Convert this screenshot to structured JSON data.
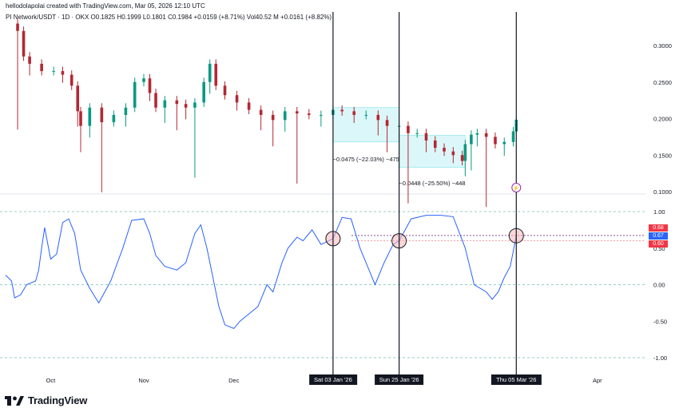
{
  "header": {
    "publisher": "hellodolapolai created with TradingView.com, Mar 05, 2026 12:10 UTC",
    "symbol_line": "PI Network/USDT · 1D · OKX  O0.1825  H0.1999  L0.1801  C0.1984  +0.0159 (+8.71%)  Vol40.52 M  +0.0161 (+8.82%)"
  },
  "brand": {
    "name": "TradingView"
  },
  "colors": {
    "up": "#089981",
    "down": "#b22833",
    "osc": "#2962ff",
    "measure": "#7ee3e8"
  },
  "chart_data": [
    {
      "type": "candlestick",
      "title": "PI Network/USDT · 1D · OKX",
      "y_ticks": [
        "0.1000",
        "0.1500",
        "0.2000",
        "0.2500",
        "0.3000"
      ],
      "ylim": [
        0.1,
        0.35
      ],
      "x_ticks": [
        "Oct",
        "Nov",
        "Dec",
        "Apr"
      ],
      "x_range": [
        "2025-09-16",
        "2026-04-17"
      ],
      "close_series": [
        {
          "date": "2025-09-20",
          "close": 0.32
        },
        {
          "date": "2025-09-22",
          "close": 0.285
        },
        {
          "date": "2025-09-24",
          "close": 0.275
        },
        {
          "date": "2025-09-28",
          "close": 0.265
        },
        {
          "date": "2025-10-02",
          "close": 0.265
        },
        {
          "date": "2025-10-05",
          "close": 0.26
        },
        {
          "date": "2025-10-08",
          "close": 0.245
        },
        {
          "date": "2025-10-10",
          "close": 0.21
        },
        {
          "date": "2025-10-11",
          "close": 0.19
        },
        {
          "date": "2025-10-14",
          "close": 0.215
        },
        {
          "date": "2025-10-18",
          "close": 0.195
        },
        {
          "date": "2025-10-22",
          "close": 0.205
        },
        {
          "date": "2025-10-26",
          "close": 0.215
        },
        {
          "date": "2025-10-29",
          "close": 0.25
        },
        {
          "date": "2025-11-01",
          "close": 0.255
        },
        {
          "date": "2025-11-03",
          "close": 0.235
        },
        {
          "date": "2025-11-05",
          "close": 0.215
        },
        {
          "date": "2025-11-08",
          "close": 0.225
        },
        {
          "date": "2025-11-12",
          "close": 0.22
        },
        {
          "date": "2025-11-15",
          "close": 0.215
        },
        {
          "date": "2025-11-18",
          "close": 0.222
        },
        {
          "date": "2025-11-21",
          "close": 0.25
        },
        {
          "date": "2025-11-23",
          "close": 0.275
        },
        {
          "date": "2025-11-25",
          "close": 0.245
        },
        {
          "date": "2025-11-28",
          "close": 0.232
        },
        {
          "date": "2025-12-02",
          "close": 0.222
        },
        {
          "date": "2025-12-06",
          "close": 0.212
        },
        {
          "date": "2025-12-10",
          "close": 0.205
        },
        {
          "date": "2025-12-14",
          "close": 0.198
        },
        {
          "date": "2025-12-18",
          "close": 0.21
        },
        {
          "date": "2025-12-22",
          "close": 0.207
        },
        {
          "date": "2025-12-26",
          "close": 0.205
        },
        {
          "date": "2025-12-30",
          "close": 0.205
        },
        {
          "date": "2026-01-03",
          "close": 0.212
        },
        {
          "date": "2026-01-06",
          "close": 0.21
        },
        {
          "date": "2026-01-10",
          "close": 0.205
        },
        {
          "date": "2026-01-14",
          "close": 0.205
        },
        {
          "date": "2026-01-18",
          "close": 0.198
        },
        {
          "date": "2026-01-21",
          "close": 0.19
        },
        {
          "date": "2026-01-25",
          "close": 0.19
        },
        {
          "date": "2026-01-28",
          "close": 0.18
        },
        {
          "date": "2026-01-31",
          "close": 0.18
        },
        {
          "date": "2026-02-03",
          "close": 0.17
        },
        {
          "date": "2026-02-06",
          "close": 0.16
        },
        {
          "date": "2026-02-09",
          "close": 0.155
        },
        {
          "date": "2026-02-12",
          "close": 0.15
        },
        {
          "date": "2026-02-15",
          "close": 0.142
        },
        {
          "date": "2026-02-16",
          "close": 0.165
        },
        {
          "date": "2026-02-18",
          "close": 0.178
        },
        {
          "date": "2026-02-20",
          "close": 0.18
        },
        {
          "date": "2026-02-23",
          "close": 0.175
        },
        {
          "date": "2026-02-26",
          "close": 0.165
        },
        {
          "date": "2026-03-01",
          "close": 0.168
        },
        {
          "date": "2026-03-04",
          "close": 0.1825
        },
        {
          "date": "2026-03-05",
          "close": 0.1984
        }
      ],
      "last_candle": {
        "date": "2026-03-05",
        "open": 0.1825,
        "high": 0.1999,
        "low": 0.1801,
        "close": 0.1984
      },
      "measurements": [
        {
          "start": "2026-01-03",
          "end": "2026-01-25",
          "top": 0.215,
          "bottom": 0.168,
          "label": "−0.0475 (−22.03%) −475"
        },
        {
          "start": "2026-01-25",
          "end": "2026-02-16",
          "top": 0.177,
          "bottom": 0.133,
          "label": "−0.0448 (−25.50%) −448"
        }
      ],
      "marker": {
        "date": "2026-03-05",
        "glyph": "⚡"
      }
    },
    {
      "type": "line",
      "y_ticks": [
        "-1.00",
        "-0.50",
        "0.00",
        "0.50",
        "1.00"
      ],
      "ylim": [
        -1.2,
        1.2
      ],
      "reference_lines": [
        1.0,
        0.0,
        -1.0
      ],
      "current_values": [
        {
          "label": "0.68",
          "value": 0.68,
          "color": "#f23645"
        },
        {
          "label": "0.67",
          "value": 0.67,
          "color": "#2962ff"
        },
        {
          "label": "0.60",
          "value": 0.6,
          "color": "#f23645"
        }
      ],
      "series": [
        {
          "values": [
            {
              "date": "2025-09-16",
              "v": 0.13
            },
            {
              "date": "2025-09-18",
              "v": 0.05
            },
            {
              "date": "2025-09-19",
              "v": -0.18
            },
            {
              "date": "2025-09-21",
              "v": -0.14
            },
            {
              "date": "2025-09-23",
              "v": 0.0
            },
            {
              "date": "2025-09-26",
              "v": 0.05
            },
            {
              "date": "2025-09-27",
              "v": 0.2
            },
            {
              "date": "2025-09-28",
              "v": 0.5
            },
            {
              "date": "2025-09-29",
              "v": 0.78
            },
            {
              "date": "2025-10-01",
              "v": 0.35
            },
            {
              "date": "2025-10-03",
              "v": 0.42
            },
            {
              "date": "2025-10-05",
              "v": 0.85
            },
            {
              "date": "2025-10-07",
              "v": 0.9
            },
            {
              "date": "2025-10-09",
              "v": 0.7
            },
            {
              "date": "2025-10-11",
              "v": 0.2
            },
            {
              "date": "2025-10-14",
              "v": -0.05
            },
            {
              "date": "2025-10-17",
              "v": -0.25
            },
            {
              "date": "2025-10-21",
              "v": 0.05
            },
            {
              "date": "2025-10-25",
              "v": 0.5
            },
            {
              "date": "2025-10-28",
              "v": 0.88
            },
            {
              "date": "2025-11-01",
              "v": 0.9
            },
            {
              "date": "2025-11-03",
              "v": 0.7
            },
            {
              "date": "2025-11-05",
              "v": 0.4
            },
            {
              "date": "2025-11-08",
              "v": 0.25
            },
            {
              "date": "2025-11-12",
              "v": 0.2
            },
            {
              "date": "2025-11-15",
              "v": 0.3
            },
            {
              "date": "2025-11-18",
              "v": 0.7
            },
            {
              "date": "2025-11-20",
              "v": 0.82
            },
            {
              "date": "2025-11-22",
              "v": 0.5
            },
            {
              "date": "2025-11-26",
              "v": -0.3
            },
            {
              "date": "2025-11-28",
              "v": -0.55
            },
            {
              "date": "2025-12-01",
              "v": -0.6
            },
            {
              "date": "2025-12-03",
              "v": -0.5
            },
            {
              "date": "2025-12-06",
              "v": -0.4
            },
            {
              "date": "2025-12-09",
              "v": -0.3
            },
            {
              "date": "2025-12-12",
              "v": 0.0
            },
            {
              "date": "2025-12-14",
              "v": -0.1
            },
            {
              "date": "2025-12-17",
              "v": 0.3
            },
            {
              "date": "2025-12-19",
              "v": 0.5
            },
            {
              "date": "2025-12-22",
              "v": 0.65
            },
            {
              "date": "2025-12-24",
              "v": 0.6
            },
            {
              "date": "2025-12-27",
              "v": 0.75
            },
            {
              "date": "2025-12-30",
              "v": 0.55
            },
            {
              "date": "2026-01-03",
              "v": 0.63
            },
            {
              "date": "2026-01-06",
              "v": 0.92
            },
            {
              "date": "2026-01-09",
              "v": 0.9
            },
            {
              "date": "2026-01-12",
              "v": 0.5
            },
            {
              "date": "2026-01-15",
              "v": 0.2
            },
            {
              "date": "2026-01-17",
              "v": 0.0
            },
            {
              "date": "2026-01-20",
              "v": 0.3
            },
            {
              "date": "2026-01-23",
              "v": 0.55
            },
            {
              "date": "2026-01-25",
              "v": 0.6
            },
            {
              "date": "2026-01-29",
              "v": 0.9
            },
            {
              "date": "2026-02-03",
              "v": 0.95
            },
            {
              "date": "2026-02-08",
              "v": 0.95
            },
            {
              "date": "2026-02-12",
              "v": 0.93
            },
            {
              "date": "2026-02-16",
              "v": 0.5
            },
            {
              "date": "2026-02-19",
              "v": 0.0
            },
            {
              "date": "2026-02-23",
              "v": -0.1
            },
            {
              "date": "2026-02-25",
              "v": -0.2
            },
            {
              "date": "2026-02-27",
              "v": -0.1
            },
            {
              "date": "2026-03-01",
              "v": 0.1
            },
            {
              "date": "2026-03-03",
              "v": 0.25
            },
            {
              "date": "2026-03-05",
              "v": 0.67
            }
          ]
        }
      ],
      "crossings": [
        "2026-01-03",
        "2026-01-25",
        "2026-03-05"
      ]
    }
  ],
  "vertical_markers": [
    {
      "date": "2026-01-03",
      "label": "Sat 03 Jan '26"
    },
    {
      "date": "2026-01-25",
      "label": "Sun 25 Jan '26"
    },
    {
      "date": "2026-03-05",
      "label": "Thu 05 Mar '26"
    }
  ]
}
